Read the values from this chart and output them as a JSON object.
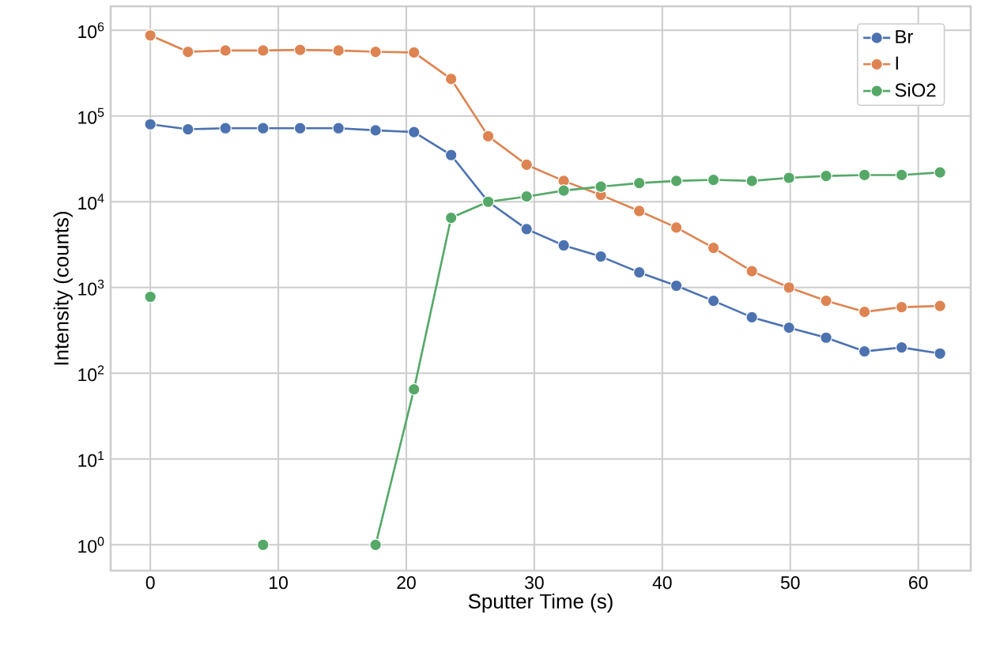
{
  "chart_data": {
    "type": "line",
    "xlabel": "Sputter Time (s)",
    "ylabel": "Intensity (counts)",
    "x": [
      0,
      2.94,
      5.87,
      8.81,
      11.7,
      14.7,
      17.6,
      20.6,
      23.5,
      26.4,
      29.4,
      32.3,
      35.2,
      38.2,
      41.1,
      44.0,
      47.0,
      49.9,
      52.8,
      55.8,
      58.7,
      61.7
    ],
    "series": [
      {
        "name": "Br",
        "color": "#4c72b0",
        "values": [
          80000,
          70000,
          72000,
          72000,
          72000,
          72000,
          68000,
          65000,
          35000,
          10000,
          4800,
          3100,
          2300,
          1500,
          1050,
          700,
          450,
          340,
          260,
          180,
          200,
          170
        ]
      },
      {
        "name": "I",
        "color": "#dd8452",
        "values": [
          870000,
          560000,
          580000,
          580000,
          590000,
          580000,
          560000,
          550000,
          270000,
          58000,
          27000,
          17500,
          12000,
          7800,
          5000,
          2900,
          1550,
          1000,
          700,
          520,
          590,
          610
        ]
      },
      {
        "name": "SiO2",
        "color": "#55a868",
        "values": [
          780,
          null,
          null,
          1,
          null,
          null,
          1,
          65,
          6500,
          10000,
          11500,
          13500,
          15000,
          16500,
          17500,
          18000,
          17500,
          19000,
          20000,
          20500,
          20500,
          22000
        ]
      }
    ],
    "log": "y",
    "xlim": [
      -3.1,
      64.1
    ],
    "ylim": [
      0.5,
      1900000
    ],
    "xticks": [
      0,
      10,
      20,
      30,
      40,
      50,
      60
    ],
    "yticks": [
      {
        "value": 1,
        "label": "10$^{0}$"
      },
      {
        "value": 10,
        "label": "10$^{1}$"
      },
      {
        "value": 100,
        "label": "10$^{2}$"
      },
      {
        "value": 1000,
        "label": "10$^{3}$"
      },
      {
        "value": 10000,
        "label": "10$^{4}$"
      },
      {
        "value": 100000,
        "label": "10$^{5}$"
      },
      {
        "value": 1000000,
        "label": "10$^{6}$"
      }
    ],
    "grid": true,
    "legend": "top right",
    "marker": "circle",
    "line_style": "solid"
  }
}
